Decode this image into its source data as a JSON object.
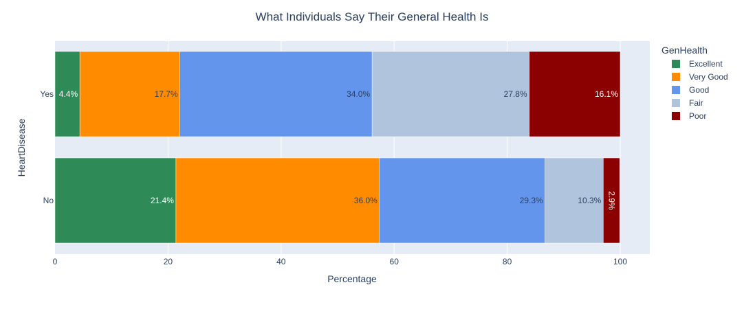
{
  "chart_data": {
    "type": "bar",
    "orientation": "horizontal",
    "barmode": "stack",
    "title": "What Individuals Say Their General Health Is",
    "xlabel": "Percentage",
    "ylabel": "HeartDisease",
    "xlim": [
      0,
      105
    ],
    "xticks": [
      0,
      20,
      40,
      60,
      80,
      100
    ],
    "categories": [
      "Yes",
      "No"
    ],
    "legend_title": "GenHealth",
    "legend_position": "right",
    "grid": true,
    "plot_background": "#e5ecf6",
    "series": [
      {
        "name": "Excellent",
        "color": "#2e8b57",
        "label_color": "#ffffff",
        "values": [
          4.4,
          21.4
        ],
        "labels": [
          "4.4%",
          "21.4%"
        ]
      },
      {
        "name": "Very Good",
        "color": "#ff8c00",
        "label_color": "#2a3f5f",
        "values": [
          17.7,
          36.0
        ],
        "labels": [
          "17.7%",
          "36.0%"
        ]
      },
      {
        "name": "Good",
        "color": "#6495ed",
        "label_color": "#2a3f5f",
        "values": [
          34.0,
          29.3
        ],
        "labels": [
          "34.0%",
          "29.3%"
        ]
      },
      {
        "name": "Fair",
        "color": "#b0c4de",
        "label_color": "#2a3f5f",
        "values": [
          27.8,
          10.3
        ],
        "labels": [
          "27.8%",
          "10.3%"
        ]
      },
      {
        "name": "Poor",
        "color": "#8b0000",
        "label_color": "#ffffff",
        "values": [
          16.1,
          2.9
        ],
        "labels": [
          "16.1%",
          "2.9%"
        ]
      }
    ]
  }
}
